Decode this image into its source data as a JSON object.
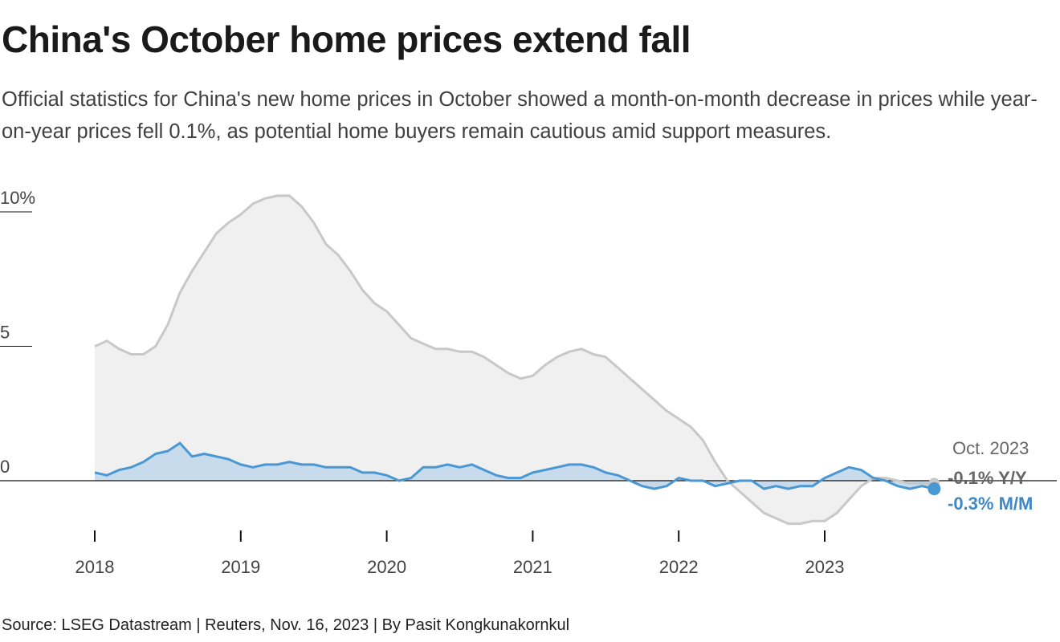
{
  "header": {
    "title": "China's October home prices extend fall",
    "subtitle": "Official statistics for China's new home prices in October showed a month-on-month decrease in prices while year-on-year prices fell 0.1%, as potential home buyers remain cautious amid support measures."
  },
  "footer": {
    "source": "Source: LSEG Datastream | Reuters, Nov. 16, 2023 | By Pasit Kongkunakornkul"
  },
  "colors": {
    "yoy_line": "#c8c8c8",
    "yoy_fill": "#f0f0f0",
    "mom_line": "#4a98d3",
    "mom_fill": "#c4d9ec",
    "mom_label": "#3e88c6",
    "yoy_label": "#666666",
    "axis": "#111111"
  },
  "chart_data": {
    "type": "area",
    "x": [
      "2018-01",
      "2018-02",
      "2018-03",
      "2018-04",
      "2018-05",
      "2018-06",
      "2018-07",
      "2018-08",
      "2018-09",
      "2018-10",
      "2018-11",
      "2018-12",
      "2019-01",
      "2019-02",
      "2019-03",
      "2019-04",
      "2019-05",
      "2019-06",
      "2019-07",
      "2019-08",
      "2019-09",
      "2019-10",
      "2019-11",
      "2019-12",
      "2020-01",
      "2020-02",
      "2020-03",
      "2020-04",
      "2020-05",
      "2020-06",
      "2020-07",
      "2020-08",
      "2020-09",
      "2020-10",
      "2020-11",
      "2020-12",
      "2021-01",
      "2021-02",
      "2021-03",
      "2021-04",
      "2021-05",
      "2021-06",
      "2021-07",
      "2021-08",
      "2021-09",
      "2021-10",
      "2021-11",
      "2021-12",
      "2022-01",
      "2022-02",
      "2022-03",
      "2022-04",
      "2022-05",
      "2022-06",
      "2022-07",
      "2022-08",
      "2022-09",
      "2022-10",
      "2022-11",
      "2022-12",
      "2023-01",
      "2023-02",
      "2023-03",
      "2023-04",
      "2023-05",
      "2023-06",
      "2023-07",
      "2023-08",
      "2023-09",
      "2023-10"
    ],
    "series": [
      {
        "name": "Y/Y",
        "values": [
          5.0,
          5.2,
          4.9,
          4.7,
          4.7,
          5.0,
          5.8,
          7.0,
          7.8,
          8.5,
          9.2,
          9.6,
          9.9,
          10.3,
          10.5,
          10.6,
          10.6,
          10.2,
          9.6,
          8.8,
          8.4,
          7.8,
          7.1,
          6.6,
          6.3,
          5.8,
          5.3,
          5.1,
          4.9,
          4.9,
          4.8,
          4.8,
          4.6,
          4.3,
          4.0,
          3.8,
          3.9,
          4.3,
          4.6,
          4.8,
          4.9,
          4.7,
          4.6,
          4.2,
          3.8,
          3.4,
          3.0,
          2.6,
          2.3,
          2.0,
          1.5,
          0.7,
          0.0,
          -0.4,
          -0.8,
          -1.2,
          -1.4,
          -1.6,
          -1.6,
          -1.5,
          -1.5,
          -1.2,
          -0.7,
          -0.2,
          0.1,
          0.1,
          0.0,
          -0.1,
          -0.1,
          -0.1
        ]
      },
      {
        "name": "M/M",
        "values": [
          0.3,
          0.2,
          0.4,
          0.5,
          0.7,
          1.0,
          1.1,
          1.4,
          0.9,
          1.0,
          0.9,
          0.8,
          0.6,
          0.5,
          0.6,
          0.6,
          0.7,
          0.6,
          0.6,
          0.5,
          0.5,
          0.5,
          0.3,
          0.3,
          0.2,
          0.0,
          0.1,
          0.5,
          0.5,
          0.6,
          0.5,
          0.6,
          0.4,
          0.2,
          0.1,
          0.1,
          0.3,
          0.4,
          0.5,
          0.6,
          0.6,
          0.5,
          0.3,
          0.2,
          0.0,
          -0.2,
          -0.3,
          -0.2,
          0.1,
          0.0,
          0.0,
          -0.2,
          -0.1,
          0.0,
          0.0,
          -0.3,
          -0.2,
          -0.3,
          -0.2,
          -0.2,
          0.1,
          0.3,
          0.5,
          0.4,
          0.1,
          0.0,
          -0.2,
          -0.3,
          -0.2,
          -0.3
        ]
      }
    ],
    "title": "China's October home prices extend fall",
    "xlabel": "",
    "ylabel": "",
    "ylim": [
      -2,
      11
    ],
    "yticks": [
      "10%",
      "5",
      "0"
    ],
    "xticks": [
      "2018",
      "2019",
      "2020",
      "2021",
      "2022",
      "2023"
    ],
    "annotations": {
      "period": "Oct. 2023",
      "yoy": "-0.1% Y/Y",
      "mom": "-0.3% M/M"
    },
    "grid": false,
    "legend": "none"
  }
}
